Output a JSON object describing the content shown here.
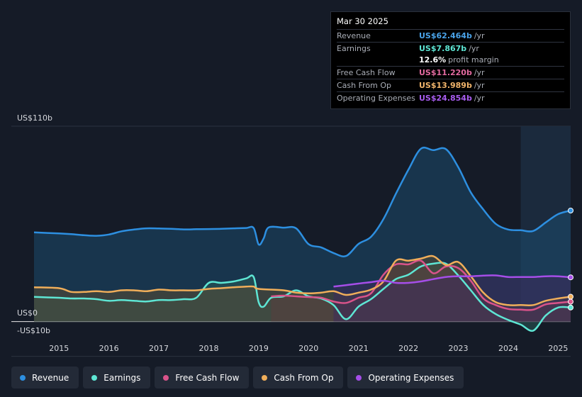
{
  "tooltip": {
    "date": "Mar 30 2025",
    "rows": [
      {
        "label": "Revenue",
        "value": "US$62.464b",
        "unit": "/yr",
        "color": "#4aa3e8"
      },
      {
        "label": "Earnings",
        "value": "US$7.867b",
        "unit": "/yr",
        "color": "#5ee6d4"
      },
      {
        "label": "",
        "value": "12.6%",
        "unit": "profit margin",
        "color": "#ffffff"
      },
      {
        "label": "Free Cash Flow",
        "value": "US$11.220b",
        "unit": "/yr",
        "color": "#e26aa0"
      },
      {
        "label": "Cash From Op",
        "value": "US$13.989b",
        "unit": "/yr",
        "color": "#f2b56b"
      },
      {
        "label": "Operating Expenses",
        "value": "US$24.854b",
        "unit": "/yr",
        "color": "#a85df0"
      }
    ]
  },
  "legend": [
    {
      "label": "Revenue",
      "color": "#2d8fe0"
    },
    {
      "label": "Earnings",
      "color": "#5ee6d4"
    },
    {
      "label": "Free Cash Flow",
      "color": "#d9538a"
    },
    {
      "label": "Cash From Op",
      "color": "#f0ae5a"
    },
    {
      "label": "Operating Expenses",
      "color": "#a54ee8"
    }
  ],
  "chart_data": {
    "type": "area",
    "y_labels": [
      {
        "text": "US$110b",
        "value": 110
      },
      {
        "text": "US$0",
        "value": 0
      },
      {
        "text": "-US$10b",
        "value": -10
      }
    ],
    "ylim": [
      -10,
      110
    ],
    "xlim": [
      2014.5,
      2025.25
    ],
    "x_ticks": [
      2015,
      2016,
      2017,
      2018,
      2019,
      2020,
      2021,
      2022,
      2023,
      2024,
      2025
    ],
    "x_tick_labels": [
      "2015",
      "2016",
      "2017",
      "2018",
      "2019",
      "2020",
      "2021",
      "2022",
      "2023",
      "2024",
      "2025"
    ],
    "highlight_start": 2024.25,
    "series": [
      {
        "name": "Revenue",
        "color": "#2d8fe0",
        "fill": "#1b4a6e",
        "points": [
          [
            2014.5,
            50.2
          ],
          [
            2015.0,
            49.6
          ],
          [
            2015.25,
            49.2
          ],
          [
            2015.5,
            48.6
          ],
          [
            2015.75,
            48.3
          ],
          [
            2016.0,
            49.0
          ],
          [
            2016.25,
            50.8
          ],
          [
            2016.5,
            51.8
          ],
          [
            2016.75,
            52.5
          ],
          [
            2017.0,
            52.4
          ],
          [
            2017.25,
            52.2
          ],
          [
            2017.5,
            51.9
          ],
          [
            2017.75,
            52.0
          ],
          [
            2018.0,
            52.1
          ],
          [
            2018.25,
            52.2
          ],
          [
            2018.5,
            52.5
          ],
          [
            2018.75,
            52.7
          ],
          [
            2018.9,
            52.7
          ],
          [
            2019.0,
            43.4
          ],
          [
            2019.1,
            46.8
          ],
          [
            2019.2,
            53.0
          ],
          [
            2019.5,
            52.9
          ],
          [
            2019.75,
            52.5
          ],
          [
            2020.0,
            43.6
          ],
          [
            2020.25,
            41.8
          ],
          [
            2020.5,
            38.6
          ],
          [
            2020.75,
            36.9
          ],
          [
            2021.0,
            43.7
          ],
          [
            2021.25,
            47.7
          ],
          [
            2021.5,
            57.7
          ],
          [
            2021.75,
            72.0
          ],
          [
            2022.0,
            85.5
          ],
          [
            2022.25,
            97.3
          ],
          [
            2022.5,
            96.5
          ],
          [
            2022.75,
            97.1
          ],
          [
            2023.0,
            86.8
          ],
          [
            2023.25,
            72.7
          ],
          [
            2023.5,
            63.1
          ],
          [
            2023.75,
            55.0
          ],
          [
            2024.0,
            51.8
          ],
          [
            2024.25,
            51.4
          ],
          [
            2024.5,
            51.0
          ],
          [
            2024.75,
            55.8
          ],
          [
            2025.0,
            60.5
          ],
          [
            2025.25,
            62.5
          ]
        ]
      },
      {
        "name": "Earnings",
        "color": "#5ee6d4",
        "fill": "#2a5a58",
        "points": [
          [
            2014.5,
            13.9
          ],
          [
            2015.0,
            13.4
          ],
          [
            2015.25,
            13.0
          ],
          [
            2015.5,
            13.0
          ],
          [
            2015.75,
            12.6
          ],
          [
            2016.0,
            11.7
          ],
          [
            2016.25,
            12.1
          ],
          [
            2016.5,
            11.7
          ],
          [
            2016.75,
            11.3
          ],
          [
            2017.0,
            12.1
          ],
          [
            2017.25,
            12.1
          ],
          [
            2017.5,
            12.6
          ],
          [
            2017.75,
            13.4
          ],
          [
            2018.0,
            21.8
          ],
          [
            2018.25,
            21.8
          ],
          [
            2018.5,
            22.6
          ],
          [
            2018.75,
            24.3
          ],
          [
            2018.9,
            25.1
          ],
          [
            2019.0,
            10.9
          ],
          [
            2019.1,
            8.4
          ],
          [
            2019.25,
            13.4
          ],
          [
            2019.5,
            14.2
          ],
          [
            2019.75,
            17.6
          ],
          [
            2020.0,
            14.2
          ],
          [
            2020.25,
            13.0
          ],
          [
            2020.5,
            9.3
          ],
          [
            2020.75,
            1.3
          ],
          [
            2021.0,
            8.4
          ],
          [
            2021.25,
            12.6
          ],
          [
            2021.5,
            18.4
          ],
          [
            2021.75,
            23.9
          ],
          [
            2022.0,
            26.4
          ],
          [
            2022.25,
            31.0
          ],
          [
            2022.5,
            32.6
          ],
          [
            2022.75,
            32.6
          ],
          [
            2023.0,
            25.9
          ],
          [
            2023.25,
            17.6
          ],
          [
            2023.5,
            9.3
          ],
          [
            2023.75,
            4.2
          ],
          [
            2024.0,
            0.9
          ],
          [
            2024.25,
            -1.7
          ],
          [
            2024.5,
            -5.1
          ],
          [
            2024.75,
            3.4
          ],
          [
            2025.0,
            7.9
          ],
          [
            2025.25,
            7.9
          ]
        ]
      },
      {
        "name": "Free Cash Flow",
        "color": "#d9538a",
        "fill": "#5a2f4a",
        "points": [
          [
            2019.25,
            14.2
          ],
          [
            2019.5,
            14.6
          ],
          [
            2019.75,
            14.2
          ],
          [
            2020.0,
            13.8
          ],
          [
            2020.25,
            13.4
          ],
          [
            2020.5,
            11.3
          ],
          [
            2020.75,
            10.5
          ],
          [
            2021.0,
            13.4
          ],
          [
            2021.25,
            15.9
          ],
          [
            2021.5,
            26.4
          ],
          [
            2021.75,
            32.2
          ],
          [
            2022.0,
            32.2
          ],
          [
            2022.25,
            34.3
          ],
          [
            2022.5,
            27.2
          ],
          [
            2022.75,
            31.0
          ],
          [
            2023.0,
            30.1
          ],
          [
            2023.25,
            23.0
          ],
          [
            2023.5,
            13.0
          ],
          [
            2023.75,
            9.3
          ],
          [
            2024.0,
            7.1
          ],
          [
            2024.25,
            6.7
          ],
          [
            2024.5,
            6.7
          ],
          [
            2024.75,
            9.7
          ],
          [
            2025.0,
            10.5
          ],
          [
            2025.25,
            11.2
          ]
        ]
      },
      {
        "name": "Cash From Op",
        "color": "#f0ae5a",
        "fill": "#5a4a33",
        "points": [
          [
            2014.5,
            19.3
          ],
          [
            2015.0,
            18.8
          ],
          [
            2015.25,
            16.7
          ],
          [
            2015.5,
            16.7
          ],
          [
            2015.75,
            17.1
          ],
          [
            2016.0,
            16.7
          ],
          [
            2016.25,
            17.6
          ],
          [
            2016.5,
            17.6
          ],
          [
            2016.75,
            17.1
          ],
          [
            2017.0,
            18.0
          ],
          [
            2017.25,
            17.6
          ],
          [
            2017.5,
            17.6
          ],
          [
            2017.75,
            17.6
          ],
          [
            2018.0,
            18.4
          ],
          [
            2018.25,
            18.8
          ],
          [
            2018.5,
            19.3
          ],
          [
            2018.75,
            19.7
          ],
          [
            2018.9,
            19.7
          ],
          [
            2019.0,
            18.4
          ],
          [
            2019.5,
            17.6
          ],
          [
            2019.75,
            16.3
          ],
          [
            2020.0,
            15.9
          ],
          [
            2020.25,
            16.3
          ],
          [
            2020.5,
            17.1
          ],
          [
            2020.75,
            15.0
          ],
          [
            2021.0,
            16.3
          ],
          [
            2021.25,
            18.0
          ],
          [
            2021.5,
            22.6
          ],
          [
            2021.75,
            34.3
          ],
          [
            2022.0,
            34.3
          ],
          [
            2022.25,
            35.5
          ],
          [
            2022.5,
            36.8
          ],
          [
            2022.75,
            31.8
          ],
          [
            2023.0,
            33.5
          ],
          [
            2023.25,
            25.5
          ],
          [
            2023.5,
            16.3
          ],
          [
            2023.75,
            10.9
          ],
          [
            2024.0,
            9.3
          ],
          [
            2024.25,
            9.3
          ],
          [
            2024.5,
            9.3
          ],
          [
            2024.75,
            11.7
          ],
          [
            2025.0,
            13.0
          ],
          [
            2025.25,
            14.0
          ]
        ]
      },
      {
        "name": "Operating Expenses",
        "color": "#a54ee8",
        "fill": "#3e2a5c",
        "points": [
          [
            2020.5,
            19.7
          ],
          [
            2020.75,
            20.5
          ],
          [
            2021.0,
            21.4
          ],
          [
            2021.25,
            22.2
          ],
          [
            2021.5,
            23.0
          ],
          [
            2021.75,
            21.8
          ],
          [
            2022.0,
            21.8
          ],
          [
            2022.25,
            22.6
          ],
          [
            2022.5,
            23.9
          ],
          [
            2022.75,
            25.1
          ],
          [
            2023.0,
            25.5
          ],
          [
            2023.25,
            25.5
          ],
          [
            2023.5,
            25.9
          ],
          [
            2023.75,
            26.0
          ],
          [
            2024.0,
            25.1
          ],
          [
            2024.25,
            25.1
          ],
          [
            2024.5,
            25.1
          ],
          [
            2024.75,
            25.5
          ],
          [
            2025.0,
            25.5
          ],
          [
            2025.25,
            24.9
          ]
        ]
      }
    ]
  }
}
